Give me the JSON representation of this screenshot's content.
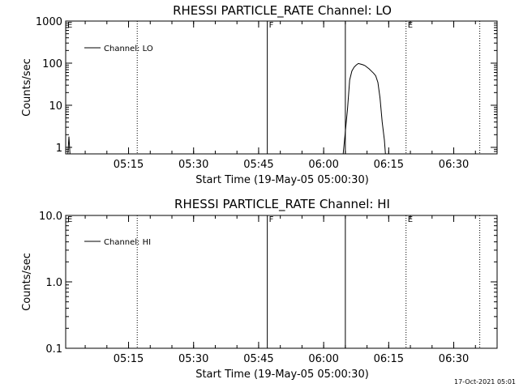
{
  "footer": {
    "timestamp": "17-Oct-2021 05:01"
  },
  "chart_data": [
    {
      "type": "line",
      "title": "RHESSI PARTICLE_RATE Channel: LO",
      "xlabel": "Start Time (19-May-05 05:00:30)",
      "ylabel": "Counts/sec",
      "yscale": "log",
      "ylim": [
        0.7,
        1000
      ],
      "xlim": [
        "05:00:30",
        "06:40:00"
      ],
      "x_ticks": [
        "05:15",
        "05:30",
        "05:45",
        "06:00",
        "06:15",
        "06:30"
      ],
      "y_ticks": [
        {
          "value": 1,
          "label": "1"
        },
        {
          "value": 10,
          "label": "10"
        },
        {
          "value": 100,
          "label": "100"
        },
        {
          "value": 1000,
          "label": "1000"
        }
      ],
      "legend": {
        "position": "top-left",
        "label": "Channel: LO"
      },
      "markers": [
        {
          "time": "05:00:30",
          "style": "tag",
          "label": "E"
        },
        {
          "time": "05:17:00",
          "style": "dotted",
          "label": ""
        },
        {
          "time": "05:47:00",
          "style": "solid",
          "label": "F"
        },
        {
          "time": "06:05:00",
          "style": "solid",
          "label": ""
        },
        {
          "time": "06:19:00",
          "style": "dotted",
          "label": "E"
        },
        {
          "time": "06:36:00",
          "style": "dotted",
          "label": ""
        }
      ],
      "series": [
        {
          "name": "Channel: LO",
          "segments": [
            [
              {
                "x": "05:01:00",
                "y": 0.7
              },
              {
                "x": "05:01:15",
                "y": 1.8
              },
              {
                "x": "05:01:30",
                "y": 0.7
              }
            ],
            [
              {
                "x": "06:04:30",
                "y": 0.7
              },
              {
                "x": "06:05:30",
                "y": 8
              },
              {
                "x": "06:06:00",
                "y": 40
              },
              {
                "x": "06:06:30",
                "y": 65
              },
              {
                "x": "06:07:00",
                "y": 80
              },
              {
                "x": "06:07:30",
                "y": 90
              },
              {
                "x": "06:08:00",
                "y": 98
              },
              {
                "x": "06:08:30",
                "y": 95
              },
              {
                "x": "06:09:00",
                "y": 92
              },
              {
                "x": "06:09:30",
                "y": 88
              },
              {
                "x": "06:10:00",
                "y": 80
              },
              {
                "x": "06:10:30",
                "y": 73
              },
              {
                "x": "06:11:00",
                "y": 65
              },
              {
                "x": "06:11:30",
                "y": 58
              },
              {
                "x": "06:12:00",
                "y": 50
              },
              {
                "x": "06:12:30",
                "y": 35
              },
              {
                "x": "06:13:00",
                "y": 15
              },
              {
                "x": "06:13:30",
                "y": 4
              },
              {
                "x": "06:14:00",
                "y": 1.5
              },
              {
                "x": "06:14:15",
                "y": 0.7
              }
            ]
          ]
        }
      ]
    },
    {
      "type": "line",
      "title": "RHESSI PARTICLE_RATE Channel: HI",
      "xlabel": "Start Time (19-May-05 05:00:30)",
      "ylabel": "Counts/sec",
      "yscale": "log",
      "ylim": [
        0.1,
        10
      ],
      "xlim": [
        "05:00:30",
        "06:40:00"
      ],
      "x_ticks": [
        "05:15",
        "05:30",
        "05:45",
        "06:00",
        "06:15",
        "06:30"
      ],
      "y_ticks": [
        {
          "value": 0.1,
          "label": "0.1"
        },
        {
          "value": 1,
          "label": "1.0"
        },
        {
          "value": 10,
          "label": "10.0"
        }
      ],
      "legend": {
        "position": "top-left",
        "label": "Channel: HI"
      },
      "markers": [
        {
          "time": "05:00:30",
          "style": "tag",
          "label": "E"
        },
        {
          "time": "05:17:00",
          "style": "dotted",
          "label": ""
        },
        {
          "time": "05:47:00",
          "style": "solid",
          "label": "F"
        },
        {
          "time": "06:05:00",
          "style": "solid",
          "label": ""
        },
        {
          "time": "06:19:00",
          "style": "dotted",
          "label": "E"
        },
        {
          "time": "06:36:00",
          "style": "dotted",
          "label": ""
        }
      ],
      "series": [
        {
          "name": "Channel: HI",
          "segments": []
        }
      ]
    }
  ]
}
